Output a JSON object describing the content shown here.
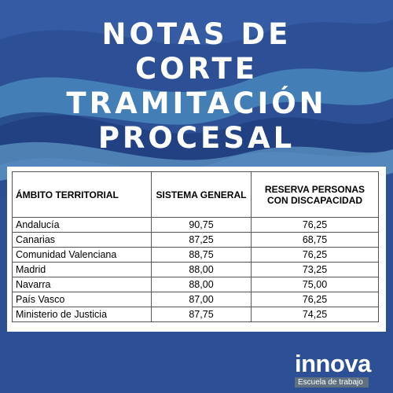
{
  "title": {
    "line1": "NOTAS DE",
    "line2": "CORTE",
    "line3": "TRAMITACIÓN",
    "line4": "PROCESAL"
  },
  "table": {
    "headers": {
      "territory": "ÁMBITO TERRITORIAL",
      "general": "SISTEMA GENERAL",
      "reserve_line1": "RESERVA PERSONAS",
      "reserve_line2": "CON DISCAPACIDAD"
    },
    "rows": [
      {
        "territory": "Andalucía",
        "general": "90,75",
        "reserve": "76,25"
      },
      {
        "territory": "Canarias",
        "general": "87,25",
        "reserve": "68,75"
      },
      {
        "territory": "Comunidad Valenciana",
        "general": "88,75",
        "reserve": "76,25"
      },
      {
        "territory": "Madrid",
        "general": "88,00",
        "reserve": "73,25"
      },
      {
        "territory": "Navarra",
        "general": "88,00",
        "reserve": "75,00"
      },
      {
        "territory": "País Vasco",
        "general": "87,00",
        "reserve": "76,25"
      },
      {
        "territory": "Ministerio de Justicia",
        "general": "87,75",
        "reserve": "74,25"
      }
    ]
  },
  "logo": {
    "name": "innova",
    "tagline": "Escuela de trabajo"
  },
  "colors": {
    "background": "#2c4f95",
    "wave_light": "#5aa6d3",
    "wave_dark": "#1d3c7c",
    "logo_tagline_bg": "#5f7080"
  }
}
